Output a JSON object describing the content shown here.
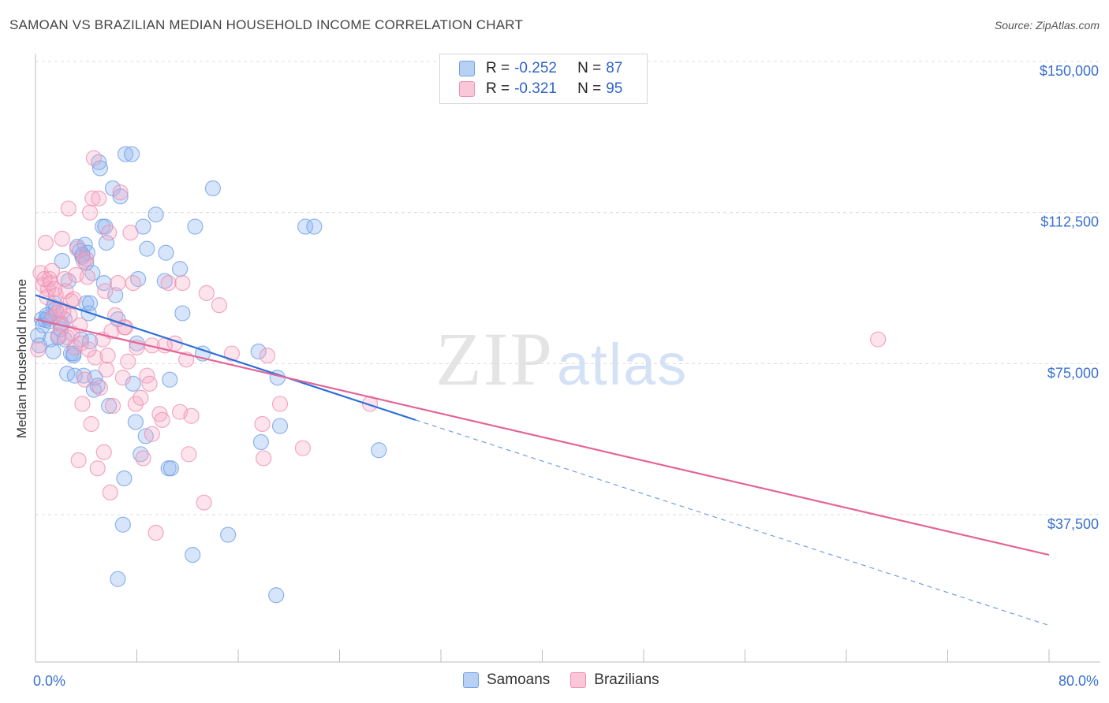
{
  "title": "SAMOAN VS BRAZILIAN MEDIAN HOUSEHOLD INCOME CORRELATION CHART",
  "source": "Source: ZipAtlas.com",
  "watermark": {
    "zip": "ZIP",
    "atlas": "atlas"
  },
  "legend": {
    "rows": [
      {
        "r_label": "R =",
        "r_value": "-0.252",
        "n_label": "N =",
        "n_value": "87",
        "color": "#6f9ee6"
      },
      {
        "r_label": "R =",
        "r_value": "-0.321",
        "n_label": "N =",
        "n_value": "95",
        "color": "#ee8fb0"
      }
    ]
  },
  "bottom_legend": [
    {
      "label": "Samoans",
      "color": "#6f9ee6"
    },
    {
      "label": "Brazilians",
      "color": "#ee8fb0"
    }
  ],
  "chart_data": {
    "type": "scatter",
    "title": "SAMOAN VS BRAZILIAN MEDIAN HOUSEHOLD INCOME CORRELATION CHART",
    "xlabel": "",
    "ylabel": "Median Household Income",
    "xlim": [
      0,
      80
    ],
    "ylim": [
      0,
      152000
    ],
    "x_tick_labels": [
      "0.0%",
      "80.0%"
    ],
    "y_ticks": [
      37500,
      75000,
      112500,
      150000
    ],
    "y_tick_labels": [
      "$37,500",
      "$75,000",
      "$112,500",
      "$150,000"
    ],
    "grid": true,
    "legend_placement": "top-center",
    "series": [
      {
        "name": "Samoans",
        "color": "#6f9ee6",
        "trend": {
          "x0": 0,
          "y0": 92000,
          "x1": 30,
          "y1": 61000,
          "dashed_to_x": 80,
          "dashed_to_y": 10000
        },
        "points": [
          [
            0.2,
            82000
          ],
          [
            0.3,
            79500
          ],
          [
            0.5,
            86000
          ],
          [
            0.6,
            84500
          ],
          [
            0.8,
            85800
          ],
          [
            1.0,
            86500
          ],
          [
            1.2,
            81000
          ],
          [
            1.4,
            89000
          ],
          [
            1.5,
            90000
          ],
          [
            1.8,
            81500
          ],
          [
            2.0,
            83500
          ],
          [
            2.1,
            100500
          ],
          [
            2.3,
            81000
          ],
          [
            2.5,
            72500
          ],
          [
            2.6,
            95500
          ],
          [
            2.8,
            77500
          ],
          [
            3.0,
            77000
          ],
          [
            3.1,
            72000
          ],
          [
            3.3,
            104000
          ],
          [
            3.5,
            103000
          ],
          [
            3.6,
            81000
          ],
          [
            3.7,
            101500
          ],
          [
            3.8,
            72000
          ],
          [
            3.9,
            104500
          ],
          [
            4.0,
            90000
          ],
          [
            4.1,
            102500
          ],
          [
            4.2,
            87500
          ],
          [
            4.3,
            80500
          ],
          [
            4.5,
            97500
          ],
          [
            4.6,
            68500
          ],
          [
            4.7,
            71500
          ],
          [
            4.9,
            69500
          ],
          [
            5.0,
            125000
          ],
          [
            5.1,
            123500
          ],
          [
            5.3,
            109000
          ],
          [
            5.4,
            95000
          ],
          [
            5.6,
            105000
          ],
          [
            5.8,
            64500
          ],
          [
            6.1,
            118500
          ],
          [
            6.3,
            92000
          ],
          [
            6.5,
            86000
          ],
          [
            6.7,
            116500
          ],
          [
            6.9,
            35000
          ],
          [
            7.0,
            46500
          ],
          [
            7.1,
            127000
          ],
          [
            7.6,
            127000
          ],
          [
            7.7,
            70000
          ],
          [
            7.9,
            60500
          ],
          [
            8.0,
            80000
          ],
          [
            8.1,
            96000
          ],
          [
            8.3,
            52500
          ],
          [
            8.5,
            109000
          ],
          [
            8.7,
            57000
          ],
          [
            8.8,
            103500
          ],
          [
            9.5,
            112000
          ],
          [
            10.2,
            95500
          ],
          [
            10.3,
            102500
          ],
          [
            10.5,
            49000
          ],
          [
            10.7,
            49000
          ],
          [
            11.4,
            98500
          ],
          [
            11.6,
            87500
          ],
          [
            12.4,
            27500
          ],
          [
            12.6,
            109000
          ],
          [
            13.2,
            77500
          ],
          [
            14.0,
            118500
          ],
          [
            15.2,
            32500
          ],
          [
            17.6,
            78000
          ],
          [
            17.8,
            55500
          ],
          [
            19.1,
            71500
          ],
          [
            19.3,
            59500
          ],
          [
            21.3,
            109000
          ],
          [
            22.0,
            109000
          ],
          [
            27.1,
            53500
          ],
          [
            1.1,
            85500
          ],
          [
            2.0,
            85000
          ],
          [
            1.6,
            88500
          ],
          [
            0.9,
            87000
          ],
          [
            6.5,
            21500
          ],
          [
            19.0,
            17500
          ],
          [
            3.0,
            77500
          ],
          [
            4.3,
            90000
          ],
          [
            1.4,
            78000
          ],
          [
            2.3,
            86000
          ],
          [
            3.7,
            102000
          ],
          [
            5.5,
            109000
          ],
          [
            4.0,
            100000
          ],
          [
            10.6,
            71000
          ]
        ]
      },
      {
        "name": "Brazilians",
        "color": "#ee8fb0",
        "trend": {
          "x0": 0,
          "y0": 86000,
          "x1": 80,
          "y1": 27500
        },
        "points": [
          [
            0.2,
            78500
          ],
          [
            0.4,
            97500
          ],
          [
            0.6,
            94500
          ],
          [
            0.8,
            105000
          ],
          [
            0.9,
            91500
          ],
          [
            1.0,
            93500
          ],
          [
            1.1,
            96000
          ],
          [
            1.2,
            95000
          ],
          [
            1.3,
            98000
          ],
          [
            1.4,
            86500
          ],
          [
            1.6,
            92000
          ],
          [
            1.7,
            87500
          ],
          [
            1.9,
            88500
          ],
          [
            2.0,
            84500
          ],
          [
            2.1,
            106000
          ],
          [
            2.3,
            96000
          ],
          [
            2.4,
            93000
          ],
          [
            2.5,
            81500
          ],
          [
            2.6,
            113500
          ],
          [
            2.7,
            87000
          ],
          [
            2.9,
            82500
          ],
          [
            3.1,
            79000
          ],
          [
            3.3,
            103500
          ],
          [
            3.4,
            51000
          ],
          [
            3.5,
            84500
          ],
          [
            3.6,
            80000
          ],
          [
            3.7,
            65000
          ],
          [
            3.8,
            100500
          ],
          [
            3.9,
            71000
          ],
          [
            4.1,
            96500
          ],
          [
            4.3,
            112500
          ],
          [
            4.4,
            60000
          ],
          [
            4.5,
            116000
          ],
          [
            4.6,
            126000
          ],
          [
            4.7,
            76500
          ],
          [
            4.9,
            49000
          ],
          [
            5.1,
            69000
          ],
          [
            5.3,
            81000
          ],
          [
            5.4,
            53000
          ],
          [
            5.5,
            93000
          ],
          [
            5.7,
            77000
          ],
          [
            5.8,
            107500
          ],
          [
            5.9,
            43000
          ],
          [
            6.1,
            64500
          ],
          [
            6.3,
            87000
          ],
          [
            6.5,
            95000
          ],
          [
            6.7,
            117500
          ],
          [
            6.9,
            71500
          ],
          [
            7.1,
            84000
          ],
          [
            7.3,
            75500
          ],
          [
            7.5,
            107500
          ],
          [
            7.7,
            95000
          ],
          [
            7.9,
            65000
          ],
          [
            8.3,
            66500
          ],
          [
            8.5,
            51500
          ],
          [
            8.8,
            72000
          ],
          [
            9.0,
            70000
          ],
          [
            9.2,
            79500
          ],
          [
            9.5,
            33000
          ],
          [
            9.8,
            62500
          ],
          [
            10.0,
            61000
          ],
          [
            10.5,
            95000
          ],
          [
            11.0,
            80000
          ],
          [
            11.4,
            63000
          ],
          [
            11.9,
            76000
          ],
          [
            12.1,
            52500
          ],
          [
            12.3,
            62000
          ],
          [
            13.3,
            40500
          ],
          [
            13.5,
            92500
          ],
          [
            14.5,
            89500
          ],
          [
            15.5,
            77500
          ],
          [
            17.9,
            60000
          ],
          [
            18.0,
            51500
          ],
          [
            18.3,
            77000
          ],
          [
            19.3,
            65000
          ],
          [
            21.1,
            54000
          ],
          [
            26.4,
            65000
          ],
          [
            66.5,
            81000
          ],
          [
            4.0,
            101000
          ],
          [
            5.0,
            116000
          ],
          [
            2.8,
            90500
          ],
          [
            0.7,
            96000
          ],
          [
            1.5,
            93500
          ],
          [
            3.2,
            97000
          ],
          [
            6.0,
            83000
          ],
          [
            7.0,
            84000
          ],
          [
            8.0,
            79000
          ],
          [
            11.6,
            95000
          ],
          [
            9.2,
            57500
          ],
          [
            4.2,
            78500
          ],
          [
            1.8,
            82000
          ],
          [
            2.2,
            88000
          ],
          [
            3.0,
            91000
          ],
          [
            5.6,
            73500
          ],
          [
            10.2,
            79500
          ]
        ]
      }
    ]
  }
}
